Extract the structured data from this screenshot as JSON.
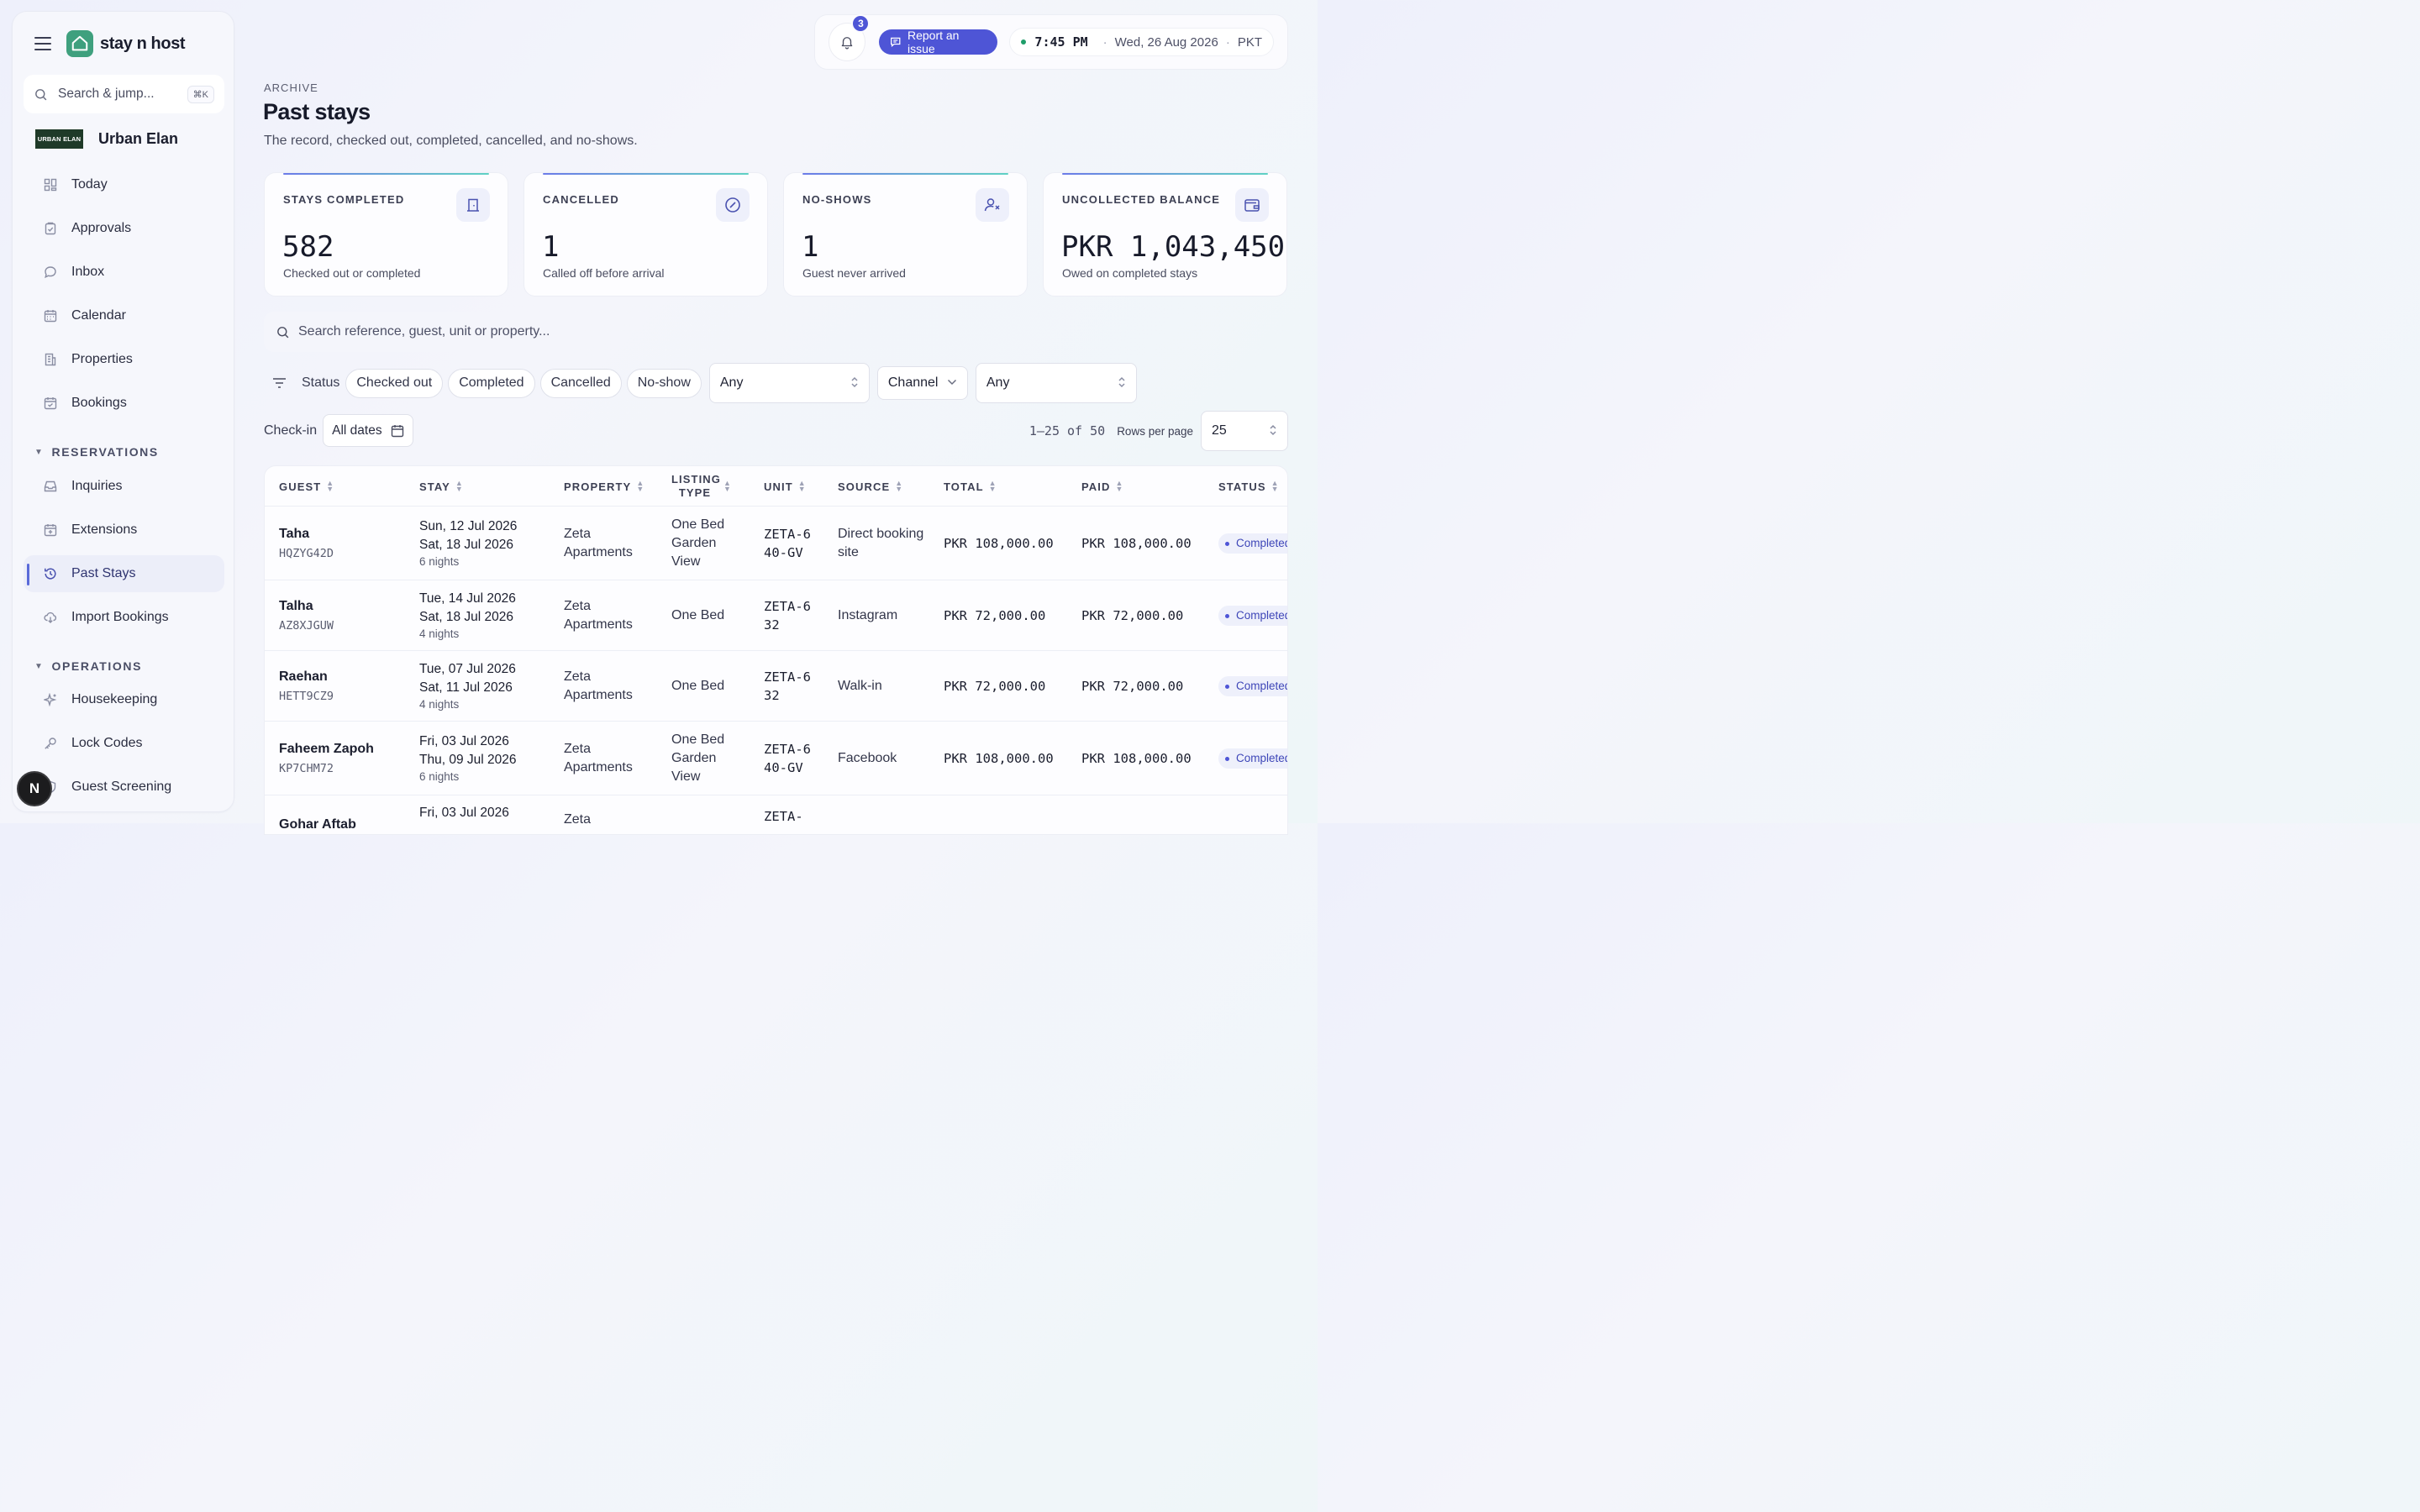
{
  "app": {
    "brand": "stay n host",
    "org_name": "Urban Elan",
    "org_logo_text": "URBAN ELAN"
  },
  "sidebar": {
    "search_placeholder": "Search & jump...",
    "search_shortcut": "⌘K",
    "items": [
      {
        "label": "Today",
        "icon": "grid-icon"
      },
      {
        "label": "Approvals",
        "icon": "clipboard-check-icon"
      },
      {
        "label": "Inbox",
        "icon": "chat-bubble-icon"
      },
      {
        "label": "Calendar",
        "icon": "calendar-icon"
      },
      {
        "label": "Properties",
        "icon": "building-icon"
      },
      {
        "label": "Bookings",
        "icon": "calendar-check-icon"
      }
    ],
    "section_reservations": "RESERVATIONS",
    "reservation_items": [
      {
        "label": "Inquiries",
        "icon": "inbox-tray-icon"
      },
      {
        "label": "Extensions",
        "icon": "calendar-plus-icon"
      },
      {
        "label": "Past Stays",
        "icon": "history-icon",
        "active": true
      },
      {
        "label": "Import Bookings",
        "icon": "cloud-download-icon"
      }
    ],
    "section_operations": "OPERATIONS",
    "operation_items": [
      {
        "label": "Housekeeping",
        "icon": "sparkles-icon"
      },
      {
        "label": "Lock Codes",
        "icon": "key-icon"
      },
      {
        "label": "Guest Screening",
        "icon": "shield-user-icon"
      }
    ],
    "avatar_letter": "N"
  },
  "topbar": {
    "notification_count": "3",
    "report_label": "Report an issue",
    "time": "7:45 PM",
    "date": "Wed, 26 Aug 2026",
    "timezone": "PKT",
    "dot": "·"
  },
  "page": {
    "eyebrow": "ARCHIVE",
    "title": "Past stays",
    "subtitle": "The record, checked out, completed, cancelled, and no-shows."
  },
  "stats": [
    {
      "label": "STAYS COMPLETED",
      "value": "582",
      "desc": "Checked out or completed",
      "icon": "door-icon"
    },
    {
      "label": "CANCELLED",
      "value": "1",
      "desc": "Called off before arrival",
      "icon": "cancel-circle-icon"
    },
    {
      "label": "NO-SHOWS",
      "value": "1",
      "desc": "Guest never arrived",
      "icon": "user-x-icon"
    },
    {
      "label": "UNCOLLECTED BALANCE",
      "value": "PKR 1,043,450",
      "desc": "Owed on completed stays",
      "icon": "wallet-icon"
    }
  ],
  "filters": {
    "search_placeholder": "Search reference, guest, unit or property...",
    "status_label": "Status",
    "status_chips": [
      "Checked out",
      "Completed",
      "Cancelled",
      "No-show"
    ],
    "status_select": "Any",
    "channel_label": "Channel",
    "channel_select": "Any",
    "checkin_label": "Check-in",
    "checkin_value": "All dates"
  },
  "pagination": {
    "range": "1–25 of 50",
    "rows_label": "Rows per page",
    "rows_value": "25"
  },
  "table": {
    "columns": [
      "GUEST",
      "STAY",
      "PROPERTY",
      "LISTING TYPE",
      "UNIT",
      "SOURCE",
      "TOTAL",
      "PAID",
      "STATUS"
    ],
    "rows": [
      {
        "guest": "Taha",
        "ref": "HQZYG42D",
        "checkin": "Sun, 12 Jul 2026",
        "checkout": "Sat, 18 Jul 2026",
        "nights": "6 nights",
        "property": "Zeta Apartments",
        "listing": "One Bed Garden View",
        "unit": "ZETA-640-GV",
        "source": "Direct booking site",
        "total": "PKR 108,000.00",
        "paid": "PKR 108,000.00",
        "status": "Completed"
      },
      {
        "guest": "Talha",
        "ref": "AZ8XJGUW",
        "checkin": "Tue, 14 Jul 2026",
        "checkout": "Sat, 18 Jul 2026",
        "nights": "4 nights",
        "property": "Zeta Apartments",
        "listing": "One Bed",
        "unit": "ZETA-632",
        "source": "Instagram",
        "total": "PKR 72,000.00",
        "paid": "PKR 72,000.00",
        "status": "Completed"
      },
      {
        "guest": "Raehan",
        "ref": "HETT9CZ9",
        "checkin": "Tue, 07 Jul 2026",
        "checkout": "Sat, 11 Jul 2026",
        "nights": "4 nights",
        "property": "Zeta Apartments",
        "listing": "One Bed",
        "unit": "ZETA-632",
        "source": "Walk-in",
        "total": "PKR 72,000.00",
        "paid": "PKR 72,000.00",
        "status": "Completed"
      },
      {
        "guest": "Faheem Zapoh",
        "ref": "KP7CHM72",
        "checkin": "Fri, 03 Jul 2026",
        "checkout": "Thu, 09 Jul 2026",
        "nights": "6 nights",
        "property": "Zeta Apartments",
        "listing": "One Bed Garden View",
        "unit": "ZETA-640-GV",
        "source": "Facebook",
        "total": "PKR 108,000.00",
        "paid": "PKR 108,000.00",
        "status": "Completed"
      },
      {
        "guest": "Gohar Aftab",
        "ref": "",
        "checkin": "Fri, 03 Jul 2026",
        "checkout": "",
        "nights": "",
        "property": "Zeta",
        "listing": "",
        "unit": "ZETA-",
        "source": "",
        "total": "",
        "paid": "",
        "status": ""
      }
    ]
  },
  "colors": {
    "accent": "#4e55d6",
    "brand_green": "#3fa07e",
    "status_bg": "#eef0fb"
  }
}
